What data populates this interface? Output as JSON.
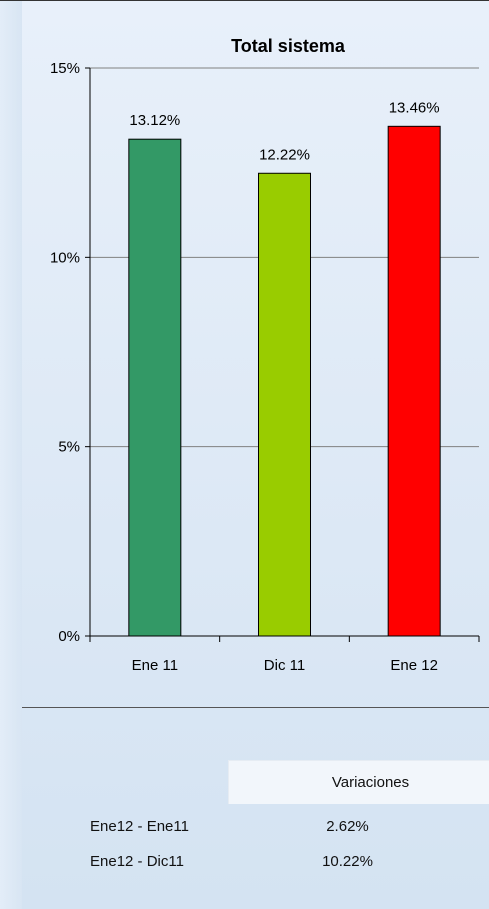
{
  "chart_data": {
    "type": "bar",
    "title": "Total sistema",
    "categories": [
      "Ene 11",
      "Dic 11",
      "Ene 12"
    ],
    "values": [
      13.12,
      12.22,
      13.46
    ],
    "data_labels": [
      "13.12%",
      "12.22%",
      "13.46%"
    ],
    "bar_colors": [
      "#339966",
      "#99cc00",
      "#ff0000"
    ],
    "ylim": [
      0,
      15
    ],
    "yticks": [
      0,
      5,
      10,
      15
    ],
    "ytick_labels": [
      "0%",
      "5%",
      "10%",
      "15%"
    ],
    "grid": true
  },
  "variations": {
    "header": "Variaciones",
    "rows": [
      {
        "label": "Ene12 - Ene11",
        "value": "2.62%"
      },
      {
        "label": "Ene12 - Dic11",
        "value": "10.22%"
      }
    ]
  }
}
